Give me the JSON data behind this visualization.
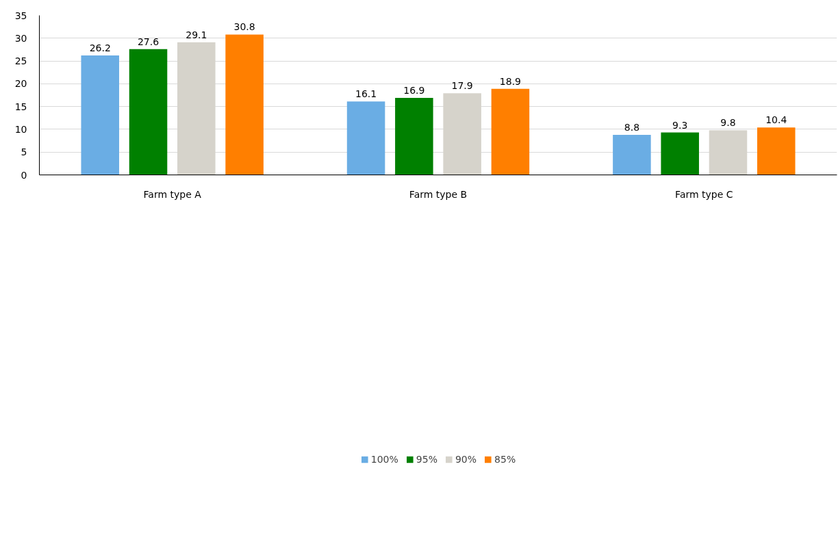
{
  "chart_data": {
    "type": "bar",
    "categories": [
      "Farm type A",
      "Farm type B",
      "Farm type C"
    ],
    "series": [
      {
        "name": "100%",
        "color": "#6aade4",
        "values": [
          26.2,
          16.1,
          8.8
        ]
      },
      {
        "name": "95%",
        "color": "#008000",
        "values": [
          27.6,
          16.9,
          9.3
        ]
      },
      {
        "name": "90%",
        "color": "#d6d3cb",
        "values": [
          29.1,
          17.9,
          9.8
        ]
      },
      {
        "name": "85%",
        "color": "#ff7f00",
        "values": [
          30.8,
          18.9,
          10.4
        ]
      }
    ],
    "ylim": [
      0,
      35
    ],
    "yticks": [
      0,
      5,
      10,
      15,
      20,
      25,
      30,
      35
    ],
    "grid": "y",
    "legend": "bottom",
    "data_labels": true
  }
}
